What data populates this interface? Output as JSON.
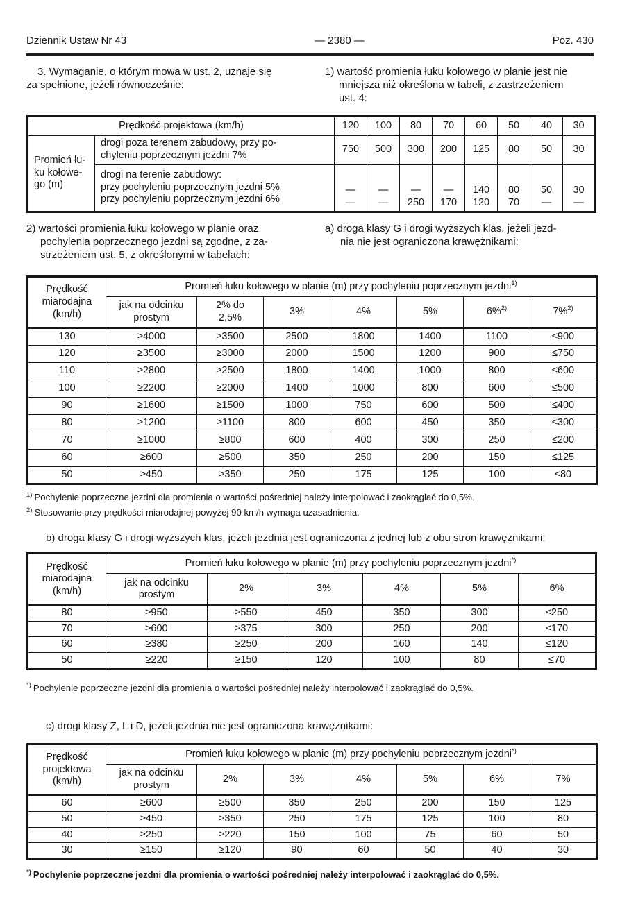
{
  "header": {
    "left": "Dziennik Ustaw Nr 43",
    "center": "— 2380 —",
    "right": "Poz. 430"
  },
  "intro": {
    "para3": "3. Wymaganie, o którym mowa w ust. 2, uznaje się\nza spełnione, jeżeli równocześnie:",
    "item1": "1) wartość promienia łuku kołowego w planie jest nie\nmniejsza niż określona w tabeli, z zastrzeżeniem\nust. 4:"
  },
  "section2": {
    "item2": "2) wartości promienia łuku kołowego w planie oraz\npochylenia poprzecznego jezdni są zgodne, z za-\nstrzeżeniem ust. 5, z określonymi w tabelach:",
    "item_a": "a) droga klasy G i drogi wyższych klas, jeżeli jezd-\nnia nie jest ograniczona krawężnikami:"
  },
  "table_speed": {
    "title": "Prędkość projektowa (km/h)",
    "speeds": [
      "120",
      "100",
      "80",
      "70",
      "60",
      "50",
      "40",
      "30"
    ],
    "group_label": "Promień łu-\nku kołowe-\ngo (m)",
    "row1_label": "drogi poza terenem zabudowy, przy po-\nchyleniu poprzecznym jezdni 7%",
    "row1_values": [
      "750",
      "500",
      "300",
      "200",
      "125",
      "80",
      "50",
      "30"
    ],
    "row2_label": "drogi na terenie zabudowy:\nprzy pochyleniu poprzecznym jezdni 5%\nprzy pochyleniu poprzecznym jezdni 6%",
    "row2_values_5pct": [
      "—",
      "—",
      "—",
      "—",
      "140",
      "80",
      "50",
      "30"
    ],
    "row2_values_6pct": [
      "—",
      "—",
      "250",
      "170",
      "120",
      "70",
      "—",
      "—"
    ]
  },
  "table_a": {
    "col1_header": "Prędkość\nmiarodajna\n(km/h)",
    "span_title": "Promień łuku kołowego w planie (m) przy pochyleniu poprzecznym jezdni",
    "span_title_sup": "1)",
    "subheaders": [
      "jak na odcinku\nprostym",
      "2% do\n2,5%",
      "3%",
      "4%",
      "5%",
      "6%",
      "7%"
    ],
    "subheader_sups": [
      "",
      "",
      "",
      "",
      "",
      "2)",
      "2)"
    ],
    "rows": [
      [
        "130",
        "≥4000",
        "≥3500",
        "2500",
        "1800",
        "1400",
        "1100",
        "≤900"
      ],
      [
        "120",
        "≥3500",
        "≥3000",
        "2000",
        "1500",
        "1200",
        "900",
        "≤750"
      ],
      [
        "110",
        "≥2800",
        "≥2500",
        "1800",
        "1400",
        "1000",
        "800",
        "≤600"
      ],
      [
        "100",
        "≥2200",
        "≥2000",
        "1400",
        "1000",
        "800",
        "600",
        "≤500"
      ],
      [
        "90",
        "≥1600",
        "≥1500",
        "1000",
        "750",
        "600",
        "500",
        "≤400"
      ],
      [
        "80",
        "≥1200",
        "≥1100",
        "800",
        "600",
        "450",
        "350",
        "≤300"
      ],
      [
        "70",
        "≥1000",
        "≥800",
        "600",
        "400",
        "300",
        "250",
        "≤200"
      ],
      [
        "60",
        "≥600",
        "≥500",
        "350",
        "250",
        "200",
        "150",
        "≤125"
      ],
      [
        "50",
        "≥450",
        "≥350",
        "250",
        "175",
        "125",
        "100",
        "≤80"
      ]
    ],
    "footnote1_marker": "1)",
    "footnote1": "Pochylenie poprzeczne jezdni dla promienia o wartości pośredniej należy interpolować i zaokrąglać do 0,5%.",
    "footnote2_marker": "2)",
    "footnote2": "Stosowanie przy prędkości miarodajnej powyżej 90 km/h wymaga uzasadnienia."
  },
  "section_b": {
    "heading": "b) droga klasy G i drogi wyższych klas, jeżeli jezdnia jest ograniczona z jednej lub z obu stron krawężnikami:"
  },
  "table_b": {
    "col1_header": "Prędkość\nmiarodajna\n(km/h)",
    "span_title": "Promień łuku kołowego w planie (m) przy pochyleniu poprzecznym jezdni",
    "span_title_sup": "*)",
    "subheaders": [
      "jak na odcinku\nprostym",
      "2%",
      "3%",
      "4%",
      "5%",
      "6%"
    ],
    "rows": [
      [
        "80",
        "≥950",
        "≥550",
        "450",
        "350",
        "300",
        "≤250"
      ],
      [
        "70",
        "≥600",
        "≥375",
        "300",
        "250",
        "200",
        "≤170"
      ],
      [
        "60",
        "≥380",
        "≥250",
        "200",
        "160",
        "140",
        "≤120"
      ],
      [
        "50",
        "≥220",
        "≥150",
        "120",
        "100",
        "80",
        "≤70"
      ]
    ],
    "footnote_marker": "*)",
    "footnote": "Pochylenie poprzeczne jezdni dla promienia o wartości pośredniej należy interpolować i zaokrąglać do 0,5%."
  },
  "section_c": {
    "heading": "c) drogi klasy Z, L i D, jeżeli jezdnia nie jest ograniczona krawężnikami:"
  },
  "table_c": {
    "col1_header": "Prędkość\nprojektowa\n(km/h)",
    "span_title": "Promień łuku kołowego w planie (m) przy pochyleniu poprzecznym jezdni",
    "span_title_sup": "*)",
    "subheaders": [
      "jak na odcinku\nprostym",
      "2%",
      "3%",
      "4%",
      "5%",
      "6%",
      "7%"
    ],
    "rows": [
      [
        "60",
        "≥600",
        "≥500",
        "350",
        "250",
        "200",
        "150",
        "125"
      ],
      [
        "50",
        "≥450",
        "≥350",
        "250",
        "175",
        "125",
        "100",
        "80"
      ],
      [
        "40",
        "≥250",
        "≥220",
        "150",
        "100",
        "75",
        "60",
        "50"
      ],
      [
        "30",
        "≥150",
        "≥120",
        "90",
        "60",
        "50",
        "40",
        "30"
      ]
    ],
    "footnote_marker": "*)",
    "footnote": "Pochylenie poprzeczne jezdni dla promienia o wartości pośredniej należy interpolować i zaokrąglać do 0,5%."
  }
}
